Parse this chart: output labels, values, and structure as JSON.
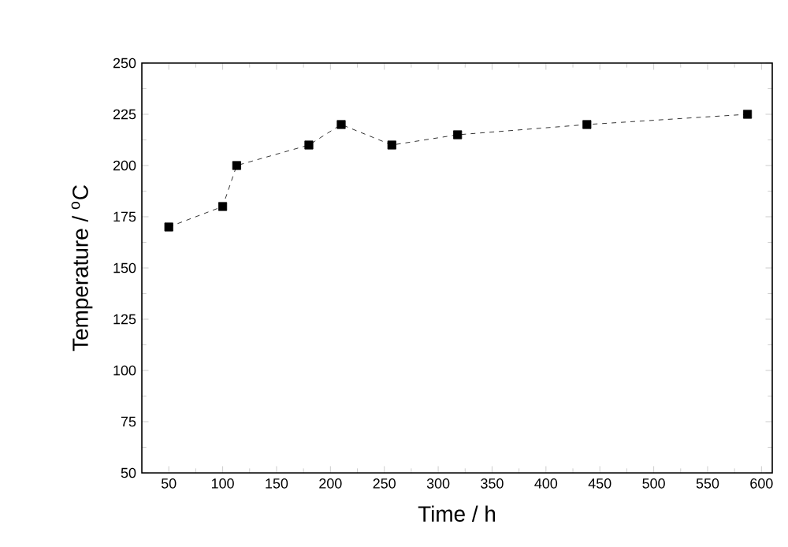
{
  "chart_data": {
    "type": "line",
    "xlabel": "Time / h",
    "ylabel": "Temperature / $^{o}$C",
    "x": [
      50,
      100,
      113,
      180,
      210,
      257,
      318,
      438,
      587
    ],
    "series": [
      {
        "color": "#000000",
        "values": [
          170,
          180,
          200,
          210,
          220,
          210,
          215,
          220,
          225
        ]
      }
    ],
    "xlim": [
      25,
      610
    ],
    "xticks": [
      50,
      100,
      150,
      200,
      250,
      300,
      350,
      400,
      450,
      500,
      550,
      600
    ],
    "ylim": [
      50,
      250
    ],
    "yticks": [
      50,
      75,
      100,
      125,
      150,
      175,
      200,
      225,
      250
    ],
    "marker": "square",
    "line_style": "dashed"
  }
}
